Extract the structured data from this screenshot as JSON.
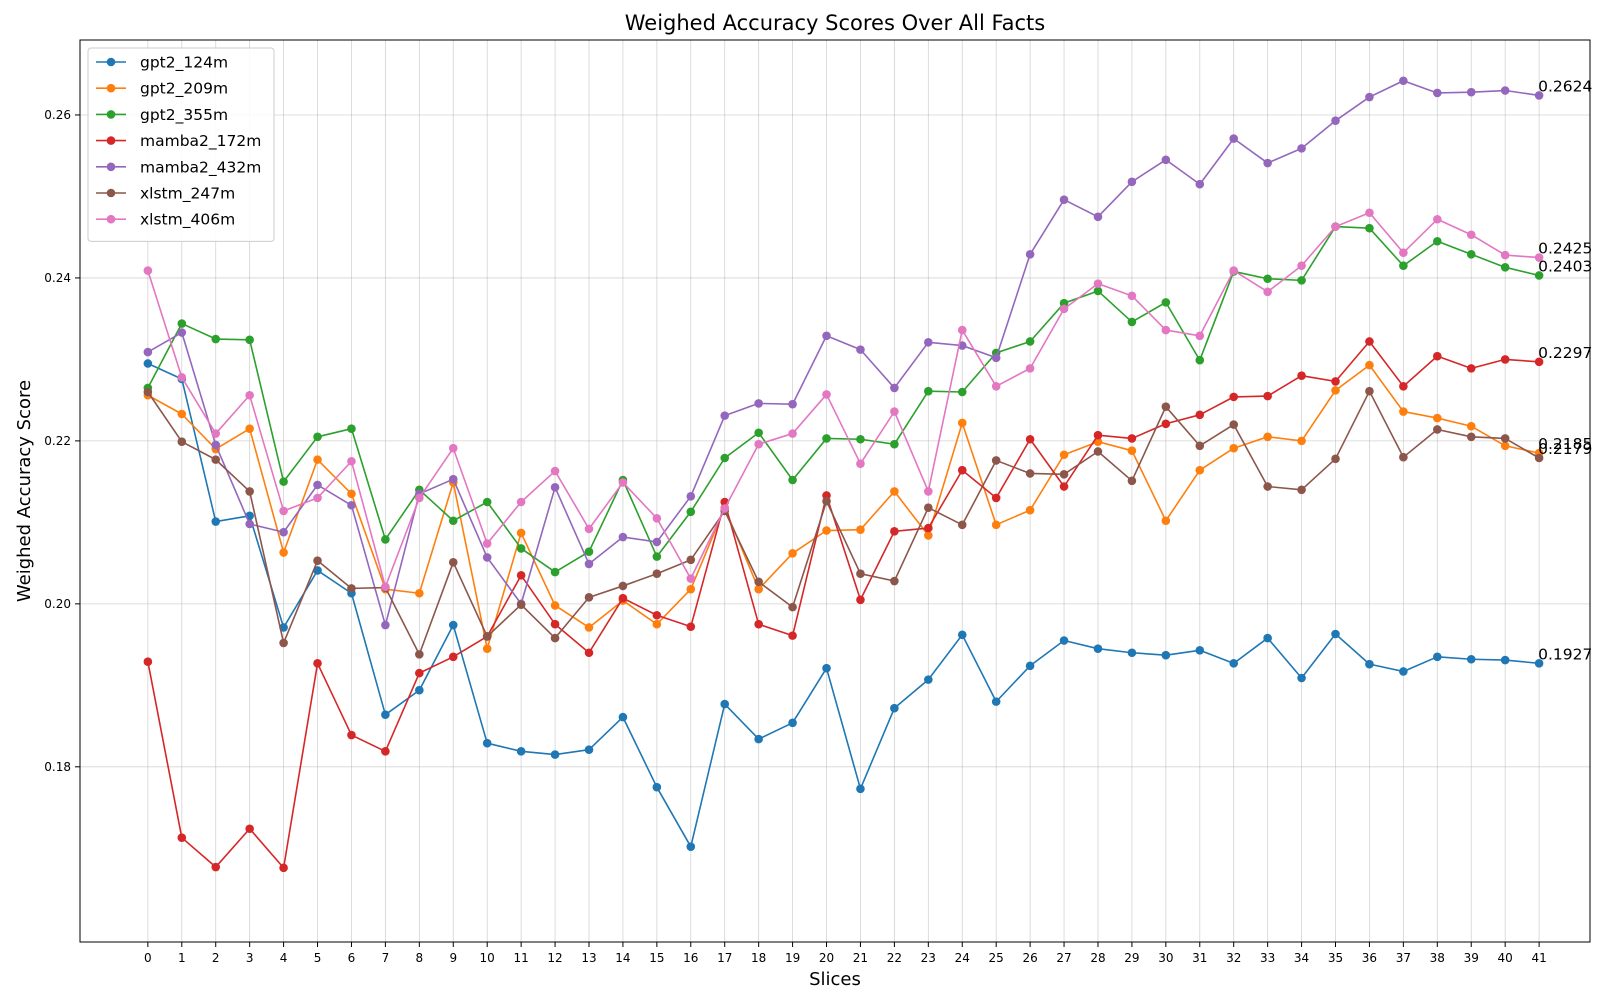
{
  "chart_data": {
    "type": "line",
    "title": "Weighed Accuracy Scores Over All Facts",
    "xlabel": "Slices",
    "ylabel": "Weighed Accuracy Score",
    "xlim": [
      -2,
      42.5
    ],
    "ylim": [
      0.1585,
      0.2692
    ],
    "x": [
      0,
      1,
      2,
      3,
      4,
      5,
      6,
      7,
      8,
      9,
      10,
      11,
      12,
      13,
      14,
      15,
      16,
      17,
      18,
      19,
      20,
      21,
      22,
      23,
      24,
      25,
      26,
      27,
      28,
      29,
      30,
      31,
      32,
      33,
      34,
      35,
      36,
      37,
      38,
      39,
      40,
      41
    ],
    "x_ticks": [
      "0",
      "1",
      "2",
      "3",
      "4",
      "5",
      "6",
      "7",
      "8",
      "9",
      "10",
      "11",
      "12",
      "13",
      "14",
      "15",
      "16",
      "17",
      "18",
      "19",
      "20",
      "21",
      "22",
      "23",
      "24",
      "25",
      "26",
      "27",
      "28",
      "29",
      "30",
      "31",
      "32",
      "33",
      "34",
      "35",
      "36",
      "37",
      "38",
      "39",
      "40",
      "41"
    ],
    "y_ticks": [
      {
        "value": 0.18,
        "label": "0.18"
      },
      {
        "value": 0.2,
        "label": "0.20"
      },
      {
        "value": 0.22,
        "label": "0.22"
      },
      {
        "value": 0.24,
        "label": "0.24"
      },
      {
        "value": 0.26,
        "label": "0.26"
      }
    ],
    "grid": true,
    "legend_position": "top-left",
    "series": [
      {
        "name": "gpt2_124m",
        "color": "#1f77b4",
        "end_label": "0.1927",
        "values": [
          0.2295,
          0.2276,
          0.2101,
          0.2108,
          0.1971,
          0.2041,
          0.2013,
          0.1864,
          0.1894,
          0.1974,
          0.1829,
          0.1819,
          0.1815,
          0.1821,
          0.1861,
          0.1775,
          0.1702,
          0.1877,
          0.1834,
          0.1854,
          0.1921,
          0.1773,
          0.1872,
          0.1907,
          0.1962,
          0.188,
          0.1924,
          0.1955,
          0.1945,
          0.194,
          0.1937,
          0.1943,
          0.1927,
          0.1958,
          0.1909,
          0.1963,
          0.1926,
          0.1917,
          0.1935,
          0.1932,
          0.1931,
          0.1927
        ]
      },
      {
        "name": "gpt2_209m",
        "color": "#ff7f0e",
        "end_label": "0.2185",
        "values": [
          0.2256,
          0.2233,
          0.219,
          0.2215,
          0.2063,
          0.2177,
          0.2135,
          0.2018,
          0.2013,
          0.2149,
          0.1945,
          0.2087,
          0.1998,
          0.1971,
          0.2004,
          0.1975,
          0.2018,
          0.2118,
          0.2018,
          0.2062,
          0.209,
          0.2091,
          0.2138,
          0.2084,
          0.2222,
          0.2097,
          0.2115,
          0.2183,
          0.2199,
          0.2188,
          0.2102,
          0.2164,
          0.2191,
          0.2205,
          0.22,
          0.2262,
          0.2293,
          0.2236,
          0.2228,
          0.2218,
          0.2194,
          0.2185
        ]
      },
      {
        "name": "gpt2_355m",
        "color": "#2ca02c",
        "end_label": "0.2403",
        "values": [
          0.2265,
          0.2344,
          0.2325,
          0.2324,
          0.215,
          0.2205,
          0.2215,
          0.2079,
          0.214,
          0.2102,
          0.2125,
          0.2068,
          0.2039,
          0.2064,
          0.2152,
          0.2058,
          0.2113,
          0.2179,
          0.221,
          0.2152,
          0.2203,
          0.2202,
          0.2196,
          0.2261,
          0.226,
          0.2308,
          0.2322,
          0.2369,
          0.2384,
          0.2346,
          0.237,
          0.2299,
          0.2408,
          0.2399,
          0.2397,
          0.2463,
          0.2461,
          0.2415,
          0.2445,
          0.2429,
          0.2413,
          0.2403
        ]
      },
      {
        "name": "mamba2_172m",
        "color": "#d62728",
        "end_label": "0.2297",
        "values": [
          0.1929,
          0.1713,
          0.1677,
          0.1724,
          0.1676,
          0.1927,
          0.1839,
          0.1819,
          0.1915,
          0.1935,
          0.196,
          0.2035,
          0.1975,
          0.194,
          0.2007,
          0.1986,
          0.1972,
          0.2125,
          0.1975,
          0.1961,
          0.2133,
          0.2005,
          0.2089,
          0.2093,
          0.2164,
          0.213,
          0.2202,
          0.2144,
          0.2207,
          0.2203,
          0.2221,
          0.2232,
          0.2254,
          0.2255,
          0.228,
          0.2273,
          0.2322,
          0.2267,
          0.2304,
          0.2289,
          0.23,
          0.2297
        ]
      },
      {
        "name": "mamba2_432m",
        "color": "#9467bd",
        "end_label": "0.2624",
        "values": [
          0.2309,
          0.2333,
          0.2195,
          0.2098,
          0.2088,
          0.2146,
          0.2121,
          0.1974,
          0.2135,
          0.2153,
          0.2057,
          0.2,
          0.2143,
          0.2049,
          0.2082,
          0.2076,
          0.2132,
          0.2231,
          0.2246,
          0.2245,
          0.2329,
          0.2312,
          0.2265,
          0.2321,
          0.2317,
          0.2302,
          0.2429,
          0.2496,
          0.2475,
          0.2518,
          0.2545,
          0.2515,
          0.2571,
          0.2541,
          0.2559,
          0.2593,
          0.2622,
          0.2642,
          0.2627,
          0.2628,
          0.263,
          0.2624
        ]
      },
      {
        "name": "xlstm_247m",
        "color": "#8c564b",
        "end_label": "0.2179",
        "values": [
          0.226,
          0.2199,
          0.2177,
          0.2138,
          0.1952,
          0.2053,
          0.2019,
          0.202,
          0.1938,
          0.2051,
          0.196,
          0.1999,
          0.1958,
          0.2008,
          0.2022,
          0.2037,
          0.2054,
          0.2114,
          0.2027,
          0.1996,
          0.2126,
          0.2037,
          0.2028,
          0.2118,
          0.2097,
          0.2176,
          0.216,
          0.2159,
          0.2187,
          0.2151,
          0.2242,
          0.2194,
          0.222,
          0.2144,
          0.214,
          0.2178,
          0.2261,
          0.218,
          0.2214,
          0.2205,
          0.2203,
          0.2179
        ]
      },
      {
        "name": "xlstm_406m",
        "color": "#e377c2",
        "end_label": "0.2425",
        "values": [
          0.2409,
          0.2278,
          0.2209,
          0.2256,
          0.2114,
          0.213,
          0.2175,
          0.2021,
          0.213,
          0.2191,
          0.2074,
          0.2125,
          0.2163,
          0.2092,
          0.2149,
          0.2105,
          0.2031,
          0.2117,
          0.2196,
          0.2209,
          0.2257,
          0.2172,
          0.2236,
          0.2138,
          0.2336,
          0.2267,
          0.2289,
          0.2362,
          0.2393,
          0.2378,
          0.2336,
          0.2329,
          0.2409,
          0.2383,
          0.2415,
          0.2463,
          0.248,
          0.2431,
          0.2472,
          0.2453,
          0.2428,
          0.2425
        ]
      }
    ]
  }
}
